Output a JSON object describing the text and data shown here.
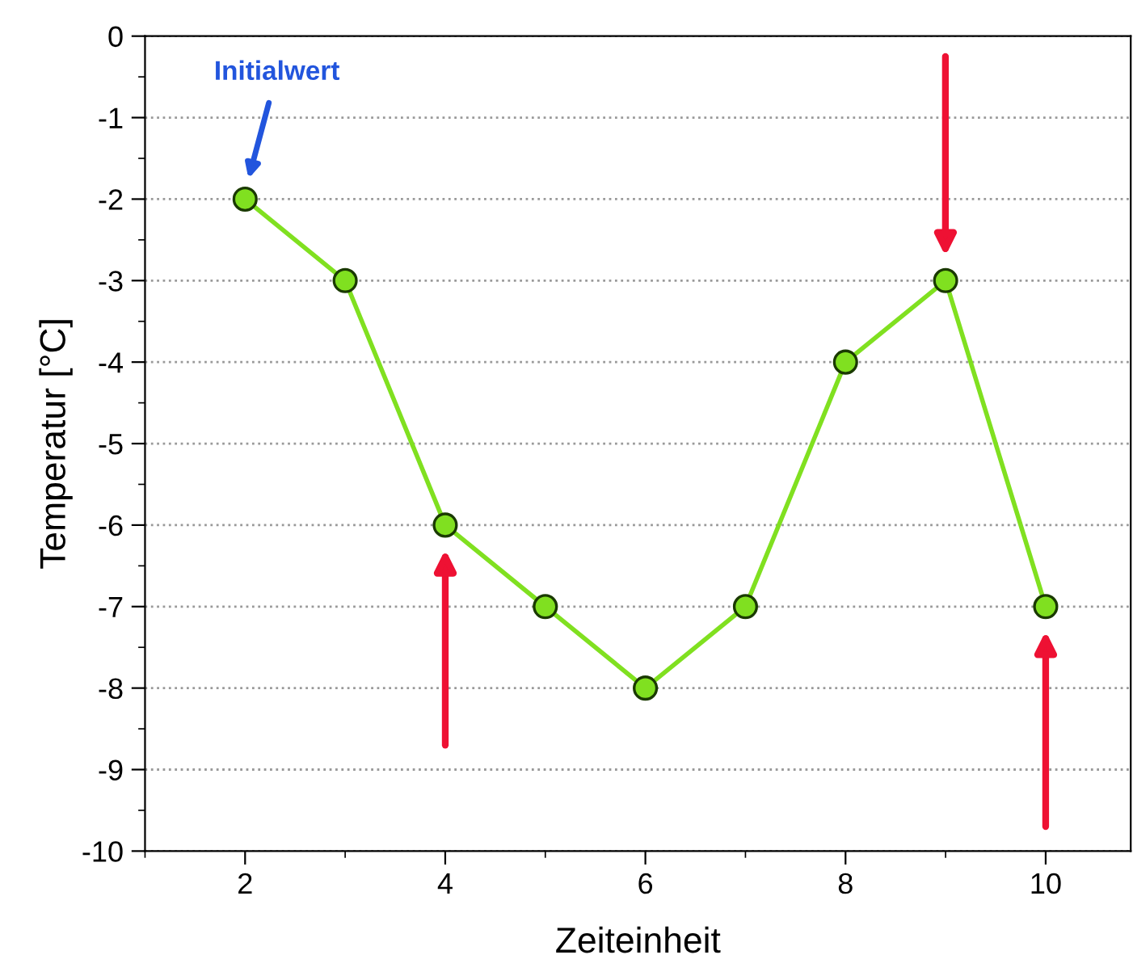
{
  "chart_data": {
    "type": "line",
    "xlabel": "Zeiteinheit",
    "ylabel": "Temperatur [°C]",
    "x": [
      2,
      3,
      4,
      5,
      6,
      7,
      8,
      9,
      10
    ],
    "series": [
      {
        "color": "#80e020",
        "values": [
          -2,
          -3,
          -6,
          -7,
          -8,
          -7,
          -4,
          -3,
          -7
        ]
      }
    ],
    "marker": "circle",
    "line_style": "solid",
    "grid": "y",
    "xlim": [
      1,
      10.85
    ],
    "xticks": [
      2,
      4,
      6,
      8,
      10
    ],
    "ylim": [
      -10,
      0
    ],
    "yticks": [
      -10,
      -9,
      -8,
      -7,
      -6,
      -5,
      -4,
      -3,
      -2,
      -1,
      0
    ],
    "annotations": [
      "Initialwert"
    ]
  }
}
